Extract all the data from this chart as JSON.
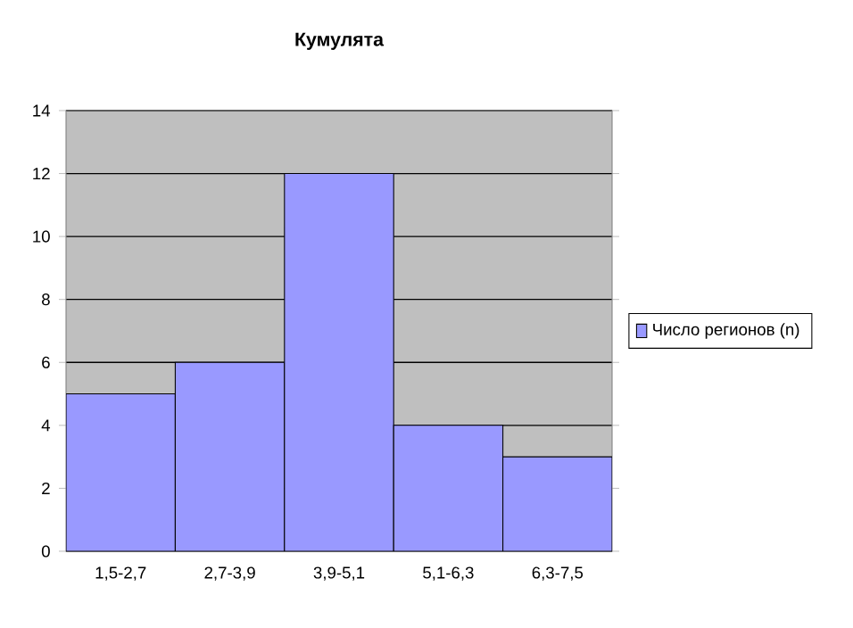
{
  "chart_data": {
    "type": "bar",
    "title": "Кумулята",
    "categories": [
      "1,5-2,7",
      "2,7-3,9",
      "3,9-5,1",
      "5,1-6,3",
      "6,3-7,5"
    ],
    "series": [
      {
        "name": "Число регионов (n)",
        "color": "#9999ff",
        "values": [
          5,
          6,
          12,
          4,
          3
        ]
      }
    ],
    "ylim": [
      0,
      14
    ],
    "yticks": [
      0,
      2,
      4,
      6,
      8,
      10,
      12,
      14
    ],
    "grid": "y",
    "legend": "right"
  }
}
